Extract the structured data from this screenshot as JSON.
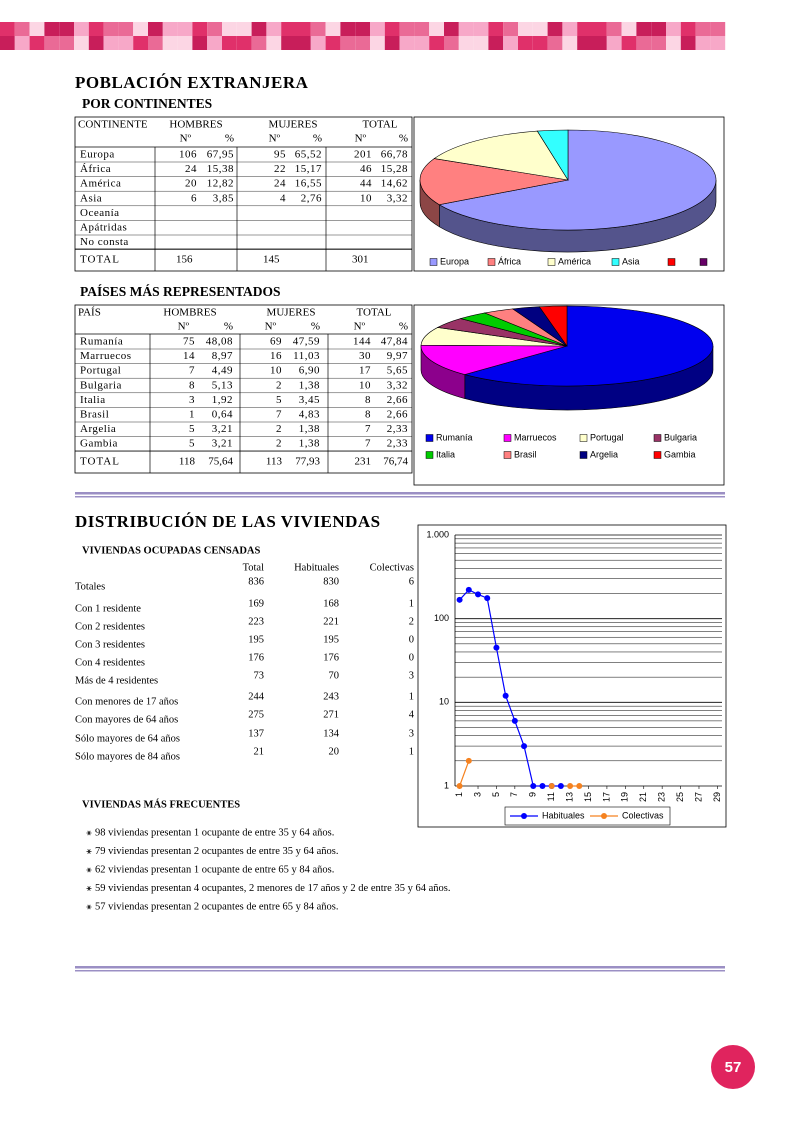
{
  "header": {
    "title": "POBLACIÓN EXTRANJERA",
    "subtitle": "POR CONTINENTES"
  },
  "continents_table": {
    "columns": [
      "CONTINENTE",
      "HOMBRES",
      "MUJERES",
      "TOTAL"
    ],
    "subcolumns": [
      "Nº",
      "%",
      "Nº",
      "%",
      "Nº",
      "%"
    ],
    "rows": [
      [
        "Europa",
        "106",
        "67,95",
        "95",
        "65,52",
        "201",
        "66,78"
      ],
      [
        "África",
        "24",
        "15,38",
        "22",
        "15,17",
        "46",
        "15,28"
      ],
      [
        "América",
        "20",
        "12,82",
        "24",
        "16,55",
        "44",
        "14,62"
      ],
      [
        "Asia",
        "6",
        "3,85",
        "4",
        "2,76",
        "10",
        "3,32"
      ],
      [
        "Oceanía"
      ],
      [
        "Apátridas"
      ],
      [
        "No consta"
      ]
    ],
    "total": [
      "TOTAL",
      "156",
      "145",
      "301"
    ]
  },
  "countries_section": {
    "title": "PAÍSES MÁS REPRESENTADOS"
  },
  "countries_table": {
    "columns": [
      "PAÍS",
      "HOMBRES",
      "MUJERES",
      "TOTAL"
    ],
    "subcolumns": [
      "Nº",
      "%",
      "Nº",
      "%",
      "Nº",
      "%"
    ],
    "rows": [
      [
        "Rumanía",
        "75",
        "48,08",
        "69",
        "47,59",
        "144",
        "47,84"
      ],
      [
        "Marruecos",
        "14",
        "8,97",
        "16",
        "11,03",
        "30",
        "9,97"
      ],
      [
        "Portugal",
        "7",
        "4,49",
        "10",
        "6,90",
        "17",
        "5,65"
      ],
      [
        "Bulgaria",
        "8",
        "5,13",
        "2",
        "1,38",
        "10",
        "3,32"
      ],
      [
        "Italia",
        "3",
        "1,92",
        "5",
        "3,45",
        "8",
        "2,66"
      ],
      [
        "Brasil",
        "1",
        "0,64",
        "7",
        "4,83",
        "8",
        "2,66"
      ],
      [
        "Argelia",
        "5",
        "3,21",
        "2",
        "1,38",
        "7",
        "2,33"
      ],
      [
        "Gambia",
        "5",
        "3,21",
        "2",
        "1,38",
        "7",
        "2,33"
      ]
    ],
    "total": [
      "TOTAL",
      "118",
      "75,64",
      "113",
      "77,93",
      "231",
      "76,74"
    ]
  },
  "housing_section": {
    "title": "DISTRIBUCIÓN DE LAS VIVIENDAS"
  },
  "housing_table": {
    "title": "VIVIENDAS OCUPADAS CENSADAS",
    "columns": [
      "Total",
      "Habituales",
      "Colectivas"
    ],
    "rows": [
      [
        "Totales",
        "836",
        "830",
        "6"
      ],
      [
        "Con 1 residente",
        "169",
        "168",
        "1"
      ],
      [
        "Con 2 residentes",
        "223",
        "221",
        "2"
      ],
      [
        "Con 3 residentes",
        "195",
        "195",
        "0"
      ],
      [
        "Con 4 residentes",
        "176",
        "176",
        "0"
      ],
      [
        "Más de 4 residentes",
        "73",
        "70",
        "3"
      ],
      [
        "Con menores de 17 años",
        "244",
        "243",
        "1"
      ],
      [
        "Con mayores de 64 años",
        "275",
        "271",
        "4"
      ],
      [
        "Sólo mayores de 64 años",
        "137",
        "134",
        "3"
      ],
      [
        "Sólo mayores de 84 años",
        "21",
        "20",
        "1"
      ]
    ]
  },
  "frequent": {
    "title": "VIVIENDAS MÁS FRECUENTES",
    "items": [
      "98 viviendas presentan 1 ocupante de entre 35 y 64 años.",
      "79 viviendas presentan 2 ocupantes de entre 35 y 64 años.",
      "62 viviendas presentan 1 ocupante de entre 65 y 84 años.",
      "59 viviendas presentan 4 ocupantes, 2 menores de 17 años y 2 de entre 35 y 64 años.",
      "57 viviendas presentan 2 ocupantes de entre 65 y 84 años."
    ]
  },
  "page_number": "57",
  "chart_data": [
    {
      "type": "pie",
      "categories": [
        "Europa",
        "África",
        "América",
        "Asia",
        null,
        null
      ],
      "values": [
        201,
        46,
        44,
        10,
        null,
        null
      ],
      "colors": [
        "#9999ff",
        "#ff8080",
        "#ffffcc",
        "#33ffff",
        "#ff0000",
        "#660066"
      ]
    },
    {
      "type": "pie",
      "categories": [
        "Rumanía",
        "Marruecos",
        "Portugal",
        "Bulgaria",
        "Italia",
        "Brasil",
        "Argelia",
        "Gambia"
      ],
      "values": [
        144,
        30,
        17,
        10,
        8,
        8,
        7,
        7
      ],
      "colors": [
        "#0000ee",
        "#ff00ff",
        "#ffffcc",
        "#993366",
        "#00cc00",
        "#ff8080",
        "#000080",
        "#ff0000"
      ]
    },
    {
      "type": "line",
      "log_y": true,
      "grid": true,
      "minor_grid": true,
      "legend": "bottom",
      "ylim": [
        1,
        1000
      ],
      "yticks": [
        1,
        10,
        100,
        {
          "value": 1000,
          "label": "1.000"
        }
      ],
      "xlim": [
        0.5,
        29.5
      ],
      "xticks": [
        1,
        3,
        5,
        7,
        9,
        11,
        13,
        15,
        17,
        19,
        21,
        23,
        25,
        27,
        29
      ],
      "x": [
        1,
        2,
        3,
        4,
        5,
        6,
        7,
        8,
        9,
        10,
        11,
        12,
        13,
        14
      ],
      "series": [
        {
          "name": "Habituales",
          "color": "#0000ff",
          "values": [
            168,
            221,
            195,
            176,
            45,
            12,
            6,
            3,
            1,
            1,
            1,
            1,
            null,
            null
          ]
        },
        {
          "name": "Colectivas",
          "color": "#f58220",
          "values": [
            1,
            2,
            null,
            null,
            null,
            null,
            null,
            null,
            null,
            null,
            1,
            null,
            1,
            1
          ]
        }
      ]
    }
  ]
}
